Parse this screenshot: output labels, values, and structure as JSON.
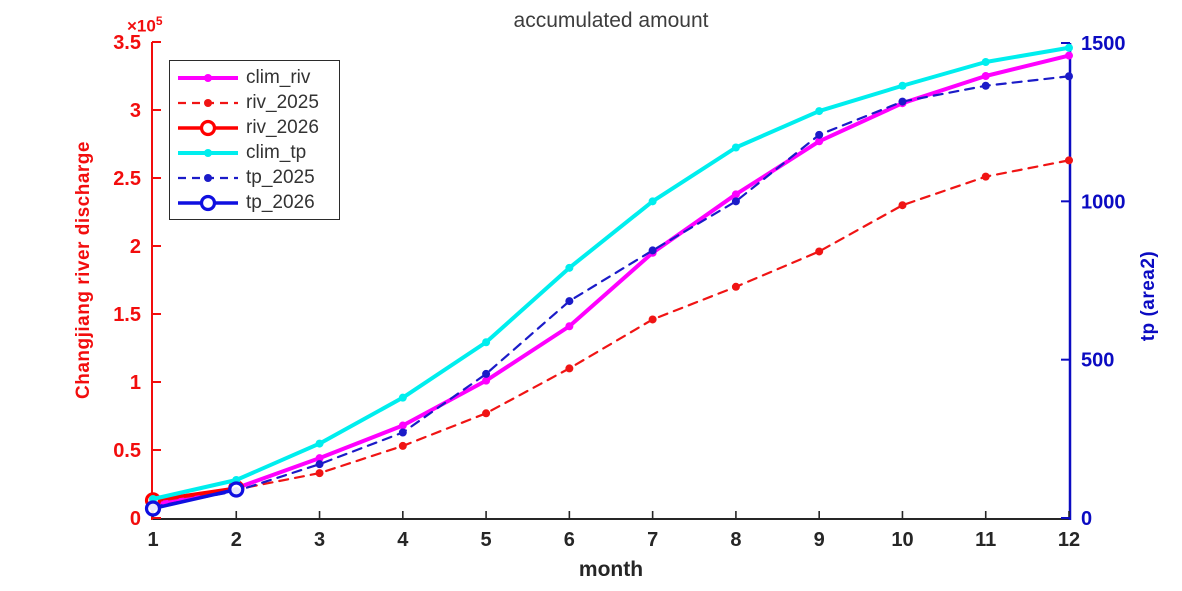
{
  "title": "accumulated amount",
  "axes": {
    "x": {
      "label": "month",
      "tick_labels": [
        "1",
        "2",
        "3",
        "4",
        "5",
        "6",
        "7",
        "8",
        "9",
        "10",
        "11",
        "12"
      ],
      "tick_values": [
        1,
        2,
        3,
        4,
        5,
        6,
        7,
        8,
        9,
        10,
        11,
        12
      ],
      "range": [
        1,
        12
      ],
      "color": "#262626"
    },
    "y_left": {
      "label": "Changjiang river discharge",
      "multiplier_base": "×10",
      "multiplier_exp": "5",
      "tick_labels": [
        "0",
        "0.5",
        "1",
        "1.5",
        "2",
        "2.5",
        "3",
        "3.5"
      ],
      "tick_values": [
        0,
        0.5,
        1,
        1.5,
        2,
        2.5,
        3,
        3.5
      ],
      "range": [
        0,
        3.5
      ],
      "color": "#f20d0d"
    },
    "y_right": {
      "label": "tp  (area2)",
      "tick_labels": [
        "0",
        "500",
        "1000",
        "1500"
      ],
      "tick_values": [
        0,
        500,
        1000,
        1500
      ],
      "range": [
        0,
        1500
      ],
      "color": "#0b0bc2"
    }
  },
  "chart_data": {
    "type": "line",
    "x": [
      1,
      2,
      3,
      4,
      5,
      6,
      7,
      8,
      9,
      10,
      11,
      12
    ],
    "grid": false,
    "legend_position": "top-left",
    "series": [
      {
        "name": "clim_riv",
        "axis": "left",
        "color": "#ff00ff",
        "style": "solid",
        "marker": "dot",
        "width": 4,
        "values": [
          0.1,
          0.22,
          0.44,
          0.68,
          1.01,
          1.41,
          1.95,
          2.38,
          2.77,
          3.05,
          3.25,
          3.4
        ]
      },
      {
        "name": "riv_2025",
        "axis": "left",
        "color": "#f01414",
        "style": "dashed",
        "marker": "dot",
        "width": 2.2,
        "values": [
          0.12,
          0.21,
          0.33,
          0.53,
          0.77,
          1.1,
          1.46,
          1.7,
          1.96,
          2.3,
          2.51,
          2.63
        ]
      },
      {
        "name": "riv_2026",
        "axis": "left",
        "color": "#ff0000",
        "style": "solid",
        "marker": "open-circle",
        "width": 3.5,
        "values": [
          0.13,
          0.22
        ]
      },
      {
        "name": "clim_tp",
        "axis": "right",
        "color": "#00eeee",
        "style": "solid",
        "marker": "dot",
        "width": 4,
        "values": [
          60,
          120,
          235,
          380,
          555,
          790,
          1000,
          1170,
          1285,
          1365,
          1440,
          1485
        ]
      },
      {
        "name": "tp_2025",
        "axis": "right",
        "color": "#1b1bc8",
        "style": "dashed",
        "marker": "dot",
        "width": 2.2,
        "values": [
          35,
          85,
          170,
          270,
          455,
          685,
          845,
          1000,
          1210,
          1315,
          1365,
          1395
        ]
      },
      {
        "name": "tp_2026",
        "axis": "right",
        "color": "#0f0fe0",
        "style": "solid",
        "marker": "open-circle",
        "width": 3.5,
        "values": [
          30,
          90
        ]
      }
    ]
  }
}
